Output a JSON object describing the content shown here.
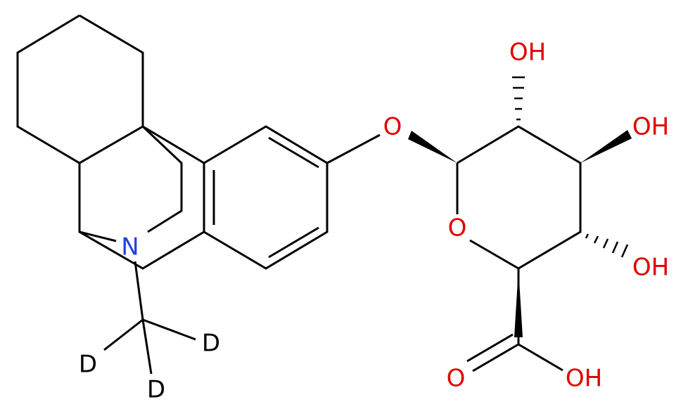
{
  "molecule": {
    "atoms": [
      {
        "label": "OH"
      },
      {
        "label": "O"
      },
      {
        "label": "OH"
      },
      {
        "label": "O"
      },
      {
        "label": "OH"
      },
      {
        "label": "O"
      },
      {
        "label": "OH"
      },
      {
        "label": "N"
      },
      {
        "label": "D"
      },
      {
        "label": "D"
      },
      {
        "label": "D"
      }
    ]
  }
}
